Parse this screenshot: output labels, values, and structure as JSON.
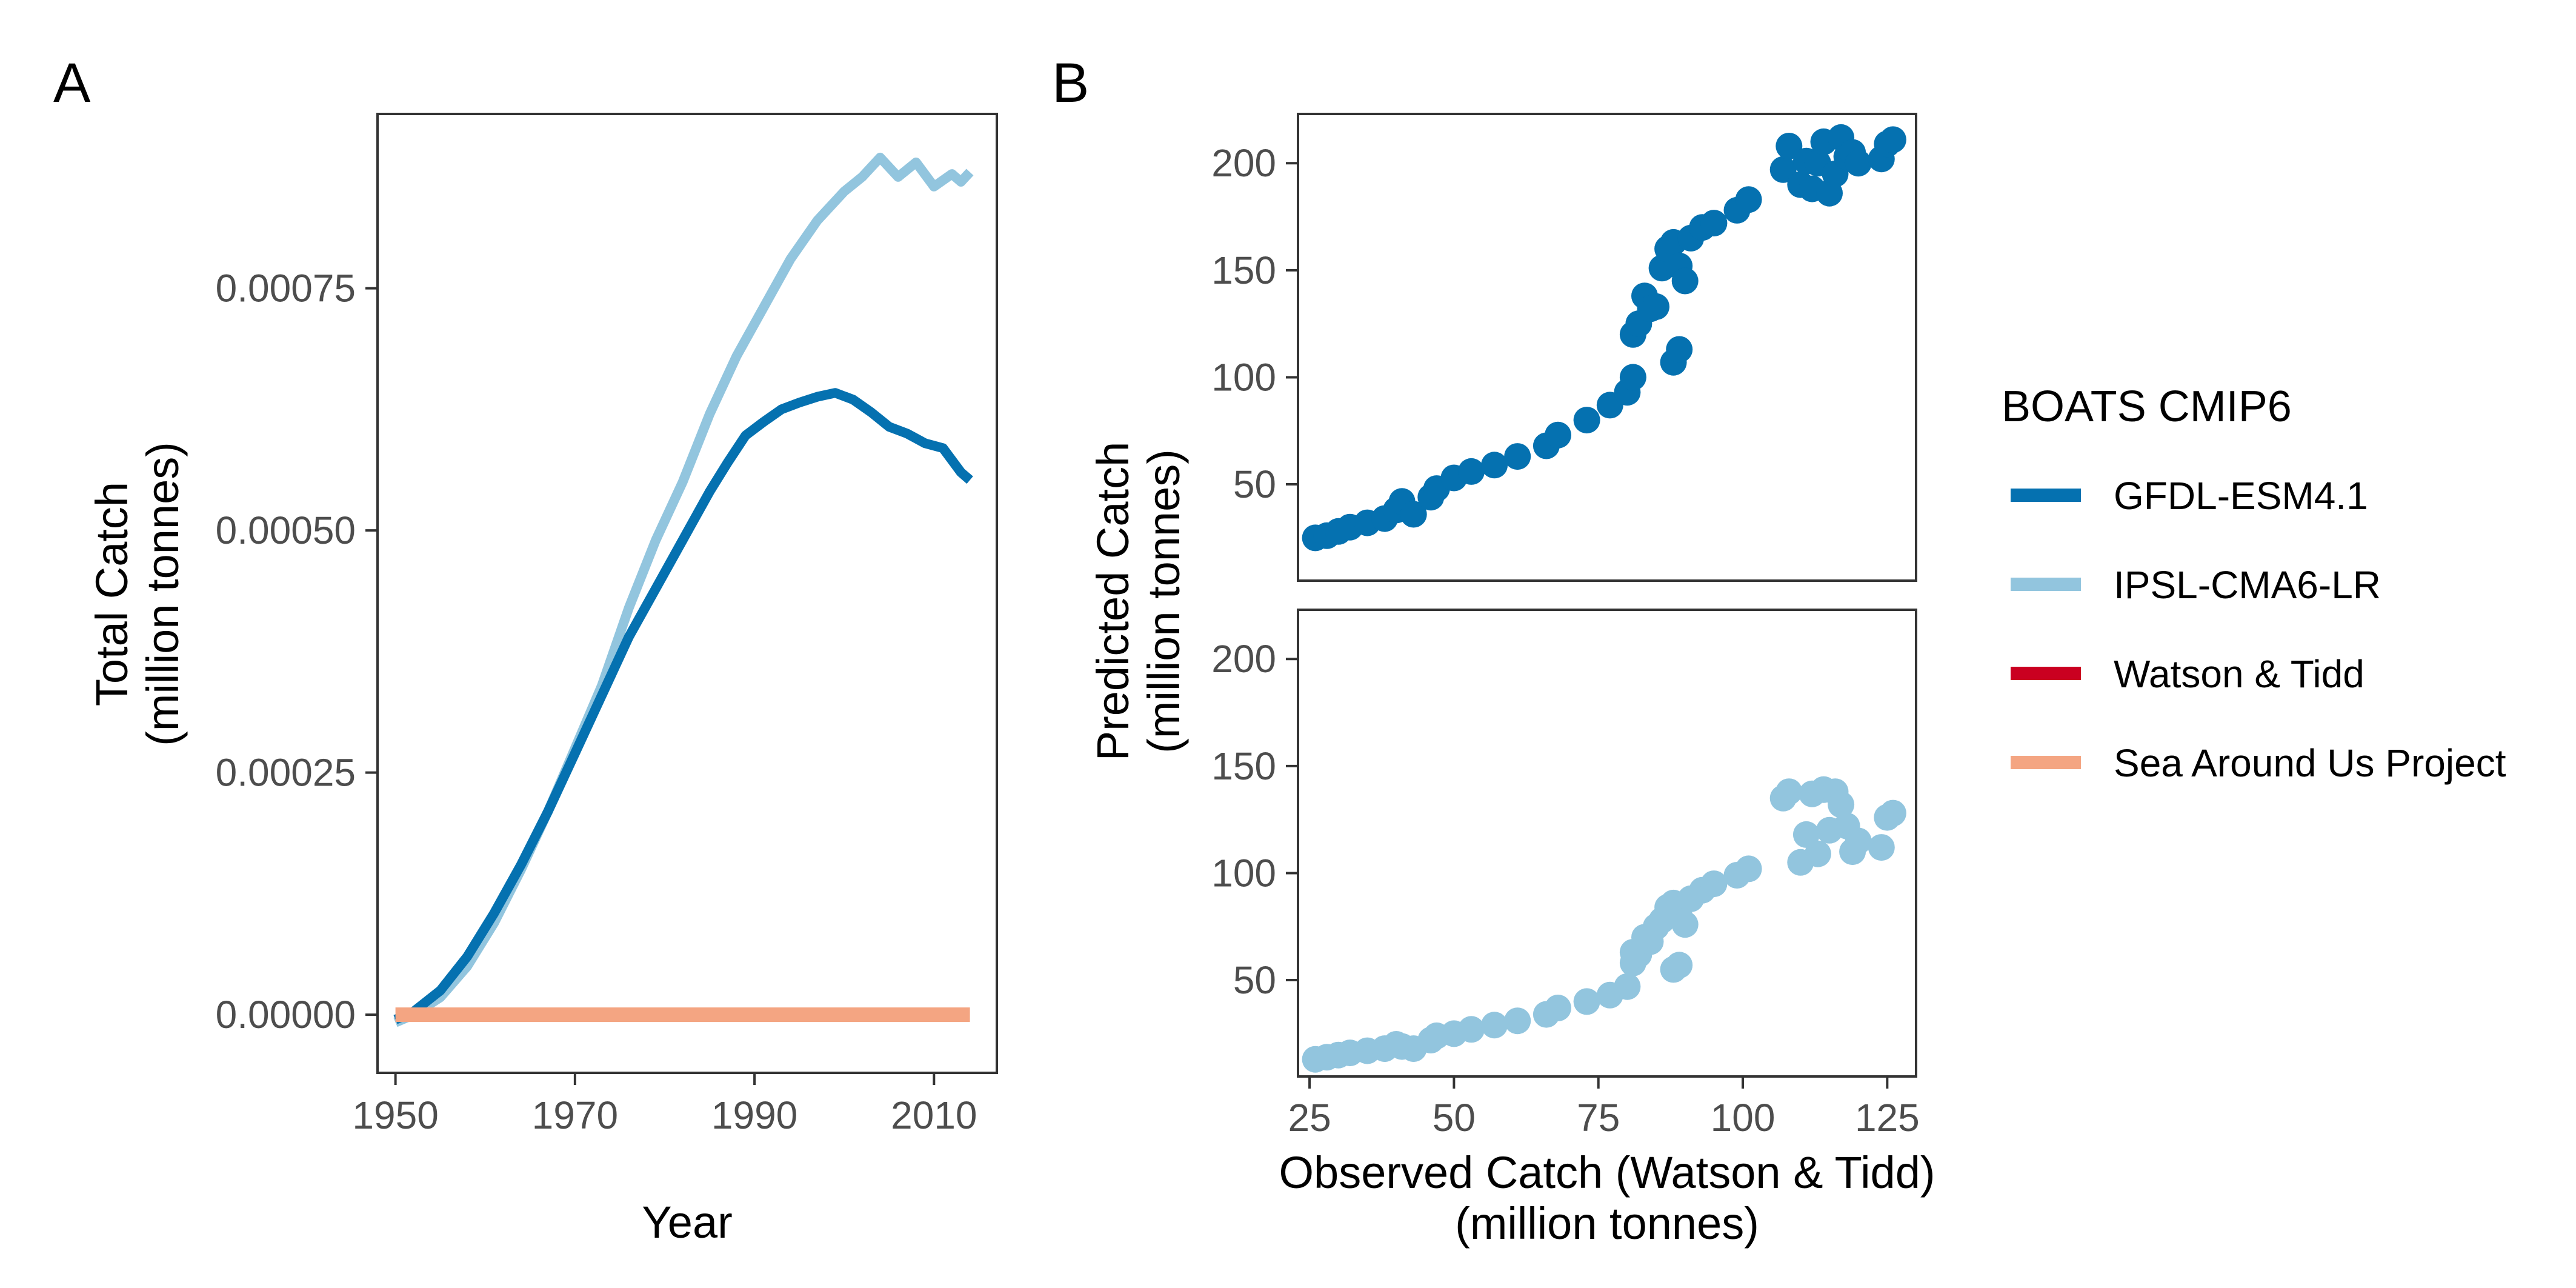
{
  "panels": {
    "a_letter": "A",
    "b_letter": "B"
  },
  "colors": {
    "gfdl": "#0571b0",
    "ipsl": "#92c5de",
    "watson": "#ca0020",
    "sau": "#f4a582"
  },
  "chart_data": [
    {
      "panel": "A",
      "type": "line",
      "xlabel": "Year",
      "ylabel_line1": "Total Catch",
      "ylabel_line2": "(million tonnes)",
      "xlim": [
        1948,
        2017
      ],
      "ylim": [
        -6e-05,
        0.00093
      ],
      "xticks": [
        1950,
        1970,
        1990,
        2010
      ],
      "yticks": [
        0,
        0.00025,
        0.0005,
        0.00075
      ],
      "ytick_labels": [
        "0.00000",
        "0.00025",
        "0.00050",
        "0.00075"
      ],
      "grid": false,
      "series": [
        {
          "name": "GFDL-ESM4.1",
          "color": "#0571b0",
          "x": [
            1950,
            1952,
            1955,
            1958,
            1961,
            1964,
            1967,
            1970,
            1973,
            1976,
            1979,
            1982,
            1985,
            1987,
            1989,
            1991,
            1993,
            1995,
            1997,
            1999,
            2001,
            2003,
            2005,
            2007,
            2009,
            2011,
            2013,
            2014
          ],
          "y": [
            -5e-06,
            3e-06,
            2.5e-05,
            6e-05,
            0.000105,
            0.000155,
            0.00021,
            0.00027,
            0.00033,
            0.00039,
            0.00044,
            0.00049,
            0.00054,
            0.00057,
            0.000598,
            0.000612,
            0.000625,
            0.000632,
            0.000638,
            0.000642,
            0.000635,
            0.000622,
            0.000607,
            0.0006,
            0.00059,
            0.000585,
            0.00056,
            0.000552
          ]
        },
        {
          "name": "IPSL-CMA6-LR",
          "color": "#92c5de",
          "x": [
            1950,
            1952,
            1955,
            1958,
            1961,
            1964,
            1967,
            1970,
            1973,
            1976,
            1979,
            1982,
            1985,
            1988,
            1991,
            1994,
            1997,
            2000,
            2002,
            2004,
            2006,
            2008,
            2010,
            2012,
            2013,
            2014
          ],
          "y": [
            -8e-06,
            0.0,
            1.8e-05,
            5e-05,
            9.5e-05,
            0.00015,
            0.00021,
            0.000275,
            0.00034,
            0.00042,
            0.00049,
            0.00055,
            0.00062,
            0.00068,
            0.00073,
            0.00078,
            0.00082,
            0.00085,
            0.000865,
            0.000885,
            0.000865,
            0.00088,
            0.000855,
            0.000868,
            0.00086,
            0.00087
          ]
        },
        {
          "name": "Sea Around Us Project",
          "color": "#f4a582",
          "x": [
            1950,
            2014
          ],
          "y": [
            0,
            0
          ]
        }
      ]
    },
    {
      "panel": "B",
      "type": "scatter",
      "xlabel_line1": "Observed Catch (Watson & Tidd)",
      "xlabel_line2": "(million tonnes)",
      "ylabel_line1": "Predicted Catch",
      "ylabel_line2": "(million tonnes)",
      "xlim": [
        23,
        130
      ],
      "ylim": [
        5,
        223
      ],
      "xticks": [
        25,
        50,
        75,
        100,
        125
      ],
      "yticks": [
        50,
        100,
        150,
        200
      ],
      "grid": false,
      "series": [
        {
          "name": "GFDL-ESM4.1",
          "color": "#0571b0",
          "x": [
            26,
            28,
            30,
            32,
            35,
            38,
            40,
            41,
            43,
            46,
            47,
            50,
            53,
            57,
            61,
            66,
            68,
            73,
            77,
            80,
            81,
            81,
            82,
            83,
            84,
            85,
            86,
            87,
            88,
            88,
            89,
            89,
            90,
            91,
            93,
            95,
            99,
            101,
            107,
            108,
            110,
            111,
            112,
            113,
            114,
            115,
            116,
            117,
            118,
            119,
            120,
            124,
            125,
            126
          ],
          "y": [
            25,
            26,
            28,
            30,
            32,
            34,
            38,
            42,
            36,
            44,
            48,
            53,
            56,
            59,
            63,
            68,
            73,
            80,
            87,
            93,
            100,
            120,
            125,
            138,
            132,
            133,
            151,
            160,
            163,
            107,
            113,
            152,
            145,
            165,
            170,
            172,
            178,
            183,
            197,
            208,
            190,
            201,
            188,
            200,
            210,
            186,
            195,
            212,
            203,
            205,
            200,
            202,
            209,
            211
          ]
        },
        {
          "name": "IPSL-CMA6-LR",
          "color": "#92c5de",
          "x": [
            26,
            28,
            30,
            32,
            35,
            38,
            40,
            41,
            43,
            46,
            47,
            50,
            53,
            57,
            61,
            66,
            68,
            73,
            77,
            80,
            81,
            81,
            82,
            83,
            84,
            85,
            86,
            87,
            88,
            88,
            89,
            89,
            90,
            91,
            93,
            95,
            99,
            101,
            107,
            108,
            110,
            111,
            112,
            113,
            114,
            115,
            116,
            117,
            118,
            119,
            120,
            124,
            125,
            126
          ],
          "y": [
            13,
            14,
            15,
            16,
            17,
            18,
            20,
            19,
            18,
            22,
            24,
            25,
            27,
            29,
            31,
            34,
            37,
            40,
            43,
            47,
            58,
            63,
            62,
            70,
            68,
            75,
            78,
            84,
            86,
            55,
            57,
            80,
            76,
            88,
            92,
            95,
            99,
            102,
            135,
            138,
            105,
            118,
            137,
            109,
            139,
            120,
            138,
            132,
            122,
            110,
            115,
            112,
            126,
            128
          ]
        }
      ]
    }
  ],
  "legend": {
    "title": "BOATS CMIP6",
    "items": [
      {
        "label": "GFDL-ESM4.1",
        "color": "#0571b0"
      },
      {
        "label": "IPSL-CMA6-LR",
        "color": "#92c5de"
      },
      {
        "label": "Watson & Tidd",
        "color": "#ca0020"
      },
      {
        "label": "Sea Around Us Project",
        "color": "#f4a582"
      }
    ]
  }
}
